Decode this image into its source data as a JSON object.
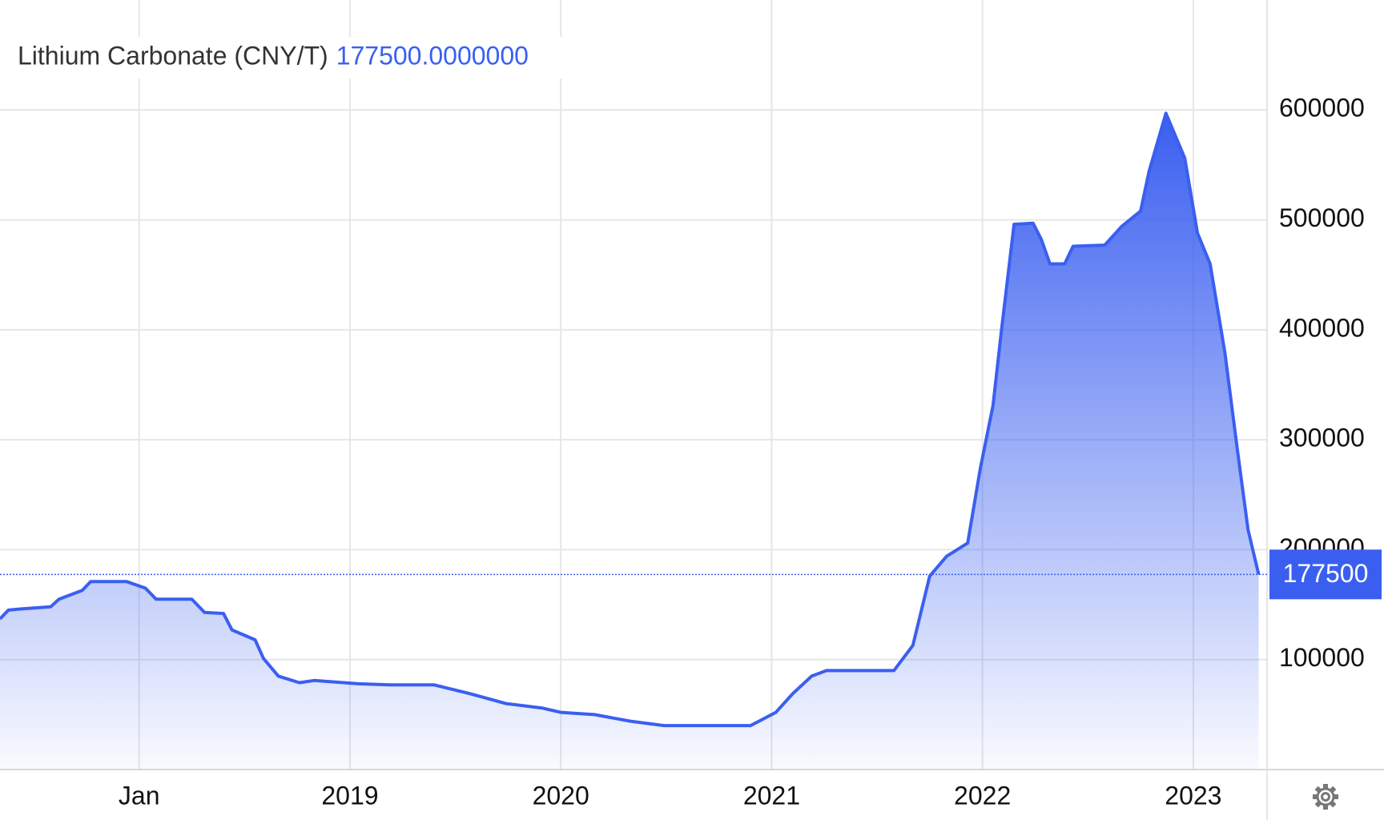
{
  "chart_data": {
    "type": "area",
    "title": "Lithium Carbonate (CNY/T)",
    "current_value": "177500.0000000",
    "color": "#3a5ff0",
    "x": [
      2017.34,
      2017.38,
      2017.43,
      2017.58,
      2017.62,
      2017.73,
      2017.77,
      2017.94,
      2018.03,
      2018.08,
      2018.25,
      2018.31,
      2018.4,
      2018.44,
      2018.55,
      2018.59,
      2018.66,
      2018.76,
      2018.83,
      2019.04,
      2019.19,
      2019.4,
      2019.57,
      2019.74,
      2019.91,
      2020.0,
      2020.16,
      2020.33,
      2020.49,
      2020.9,
      2020.97,
      2021.02,
      2021.1,
      2021.19,
      2021.26,
      2021.58,
      2021.67,
      2021.75,
      2021.83,
      2021.93,
      2021.99,
      2022.05,
      2022.09,
      2022.15,
      2022.24,
      2022.28,
      2022.32,
      2022.39,
      2022.43,
      2022.58,
      2022.66,
      2022.75,
      2022.79,
      2022.87,
      2022.96,
      2023.02,
      2023.08,
      2023.15,
      2023.21,
      2023.26,
      2023.31
    ],
    "values": [
      137000,
      145000,
      146000,
      148000,
      155000,
      163000,
      171000,
      171000,
      165000,
      155000,
      155000,
      143000,
      142000,
      127000,
      118000,
      101000,
      85000,
      79000,
      81000,
      78000,
      77000,
      77000,
      69000,
      60000,
      56000,
      52000,
      50000,
      44000,
      40000,
      40000,
      47000,
      52000,
      69000,
      85000,
      90000,
      90000,
      113000,
      176000,
      194000,
      206000,
      274000,
      331000,
      399000,
      496000,
      497000,
      482000,
      460000,
      460000,
      476000,
      477000,
      494000,
      508000,
      544000,
      597000,
      556000,
      488000,
      460000,
      379000,
      290000,
      218000,
      177500
    ],
    "xlim": [
      2017.34,
      2023.35
    ],
    "xticks": [
      {
        "value": 2018,
        "label": "Jan"
      },
      2019,
      2020,
      2021,
      2022,
      2023
    ],
    "ylim": [
      0,
      700000
    ],
    "yticks": [
      100000,
      200000,
      300000,
      400000,
      500000,
      600000
    ],
    "grid": true
  }
}
